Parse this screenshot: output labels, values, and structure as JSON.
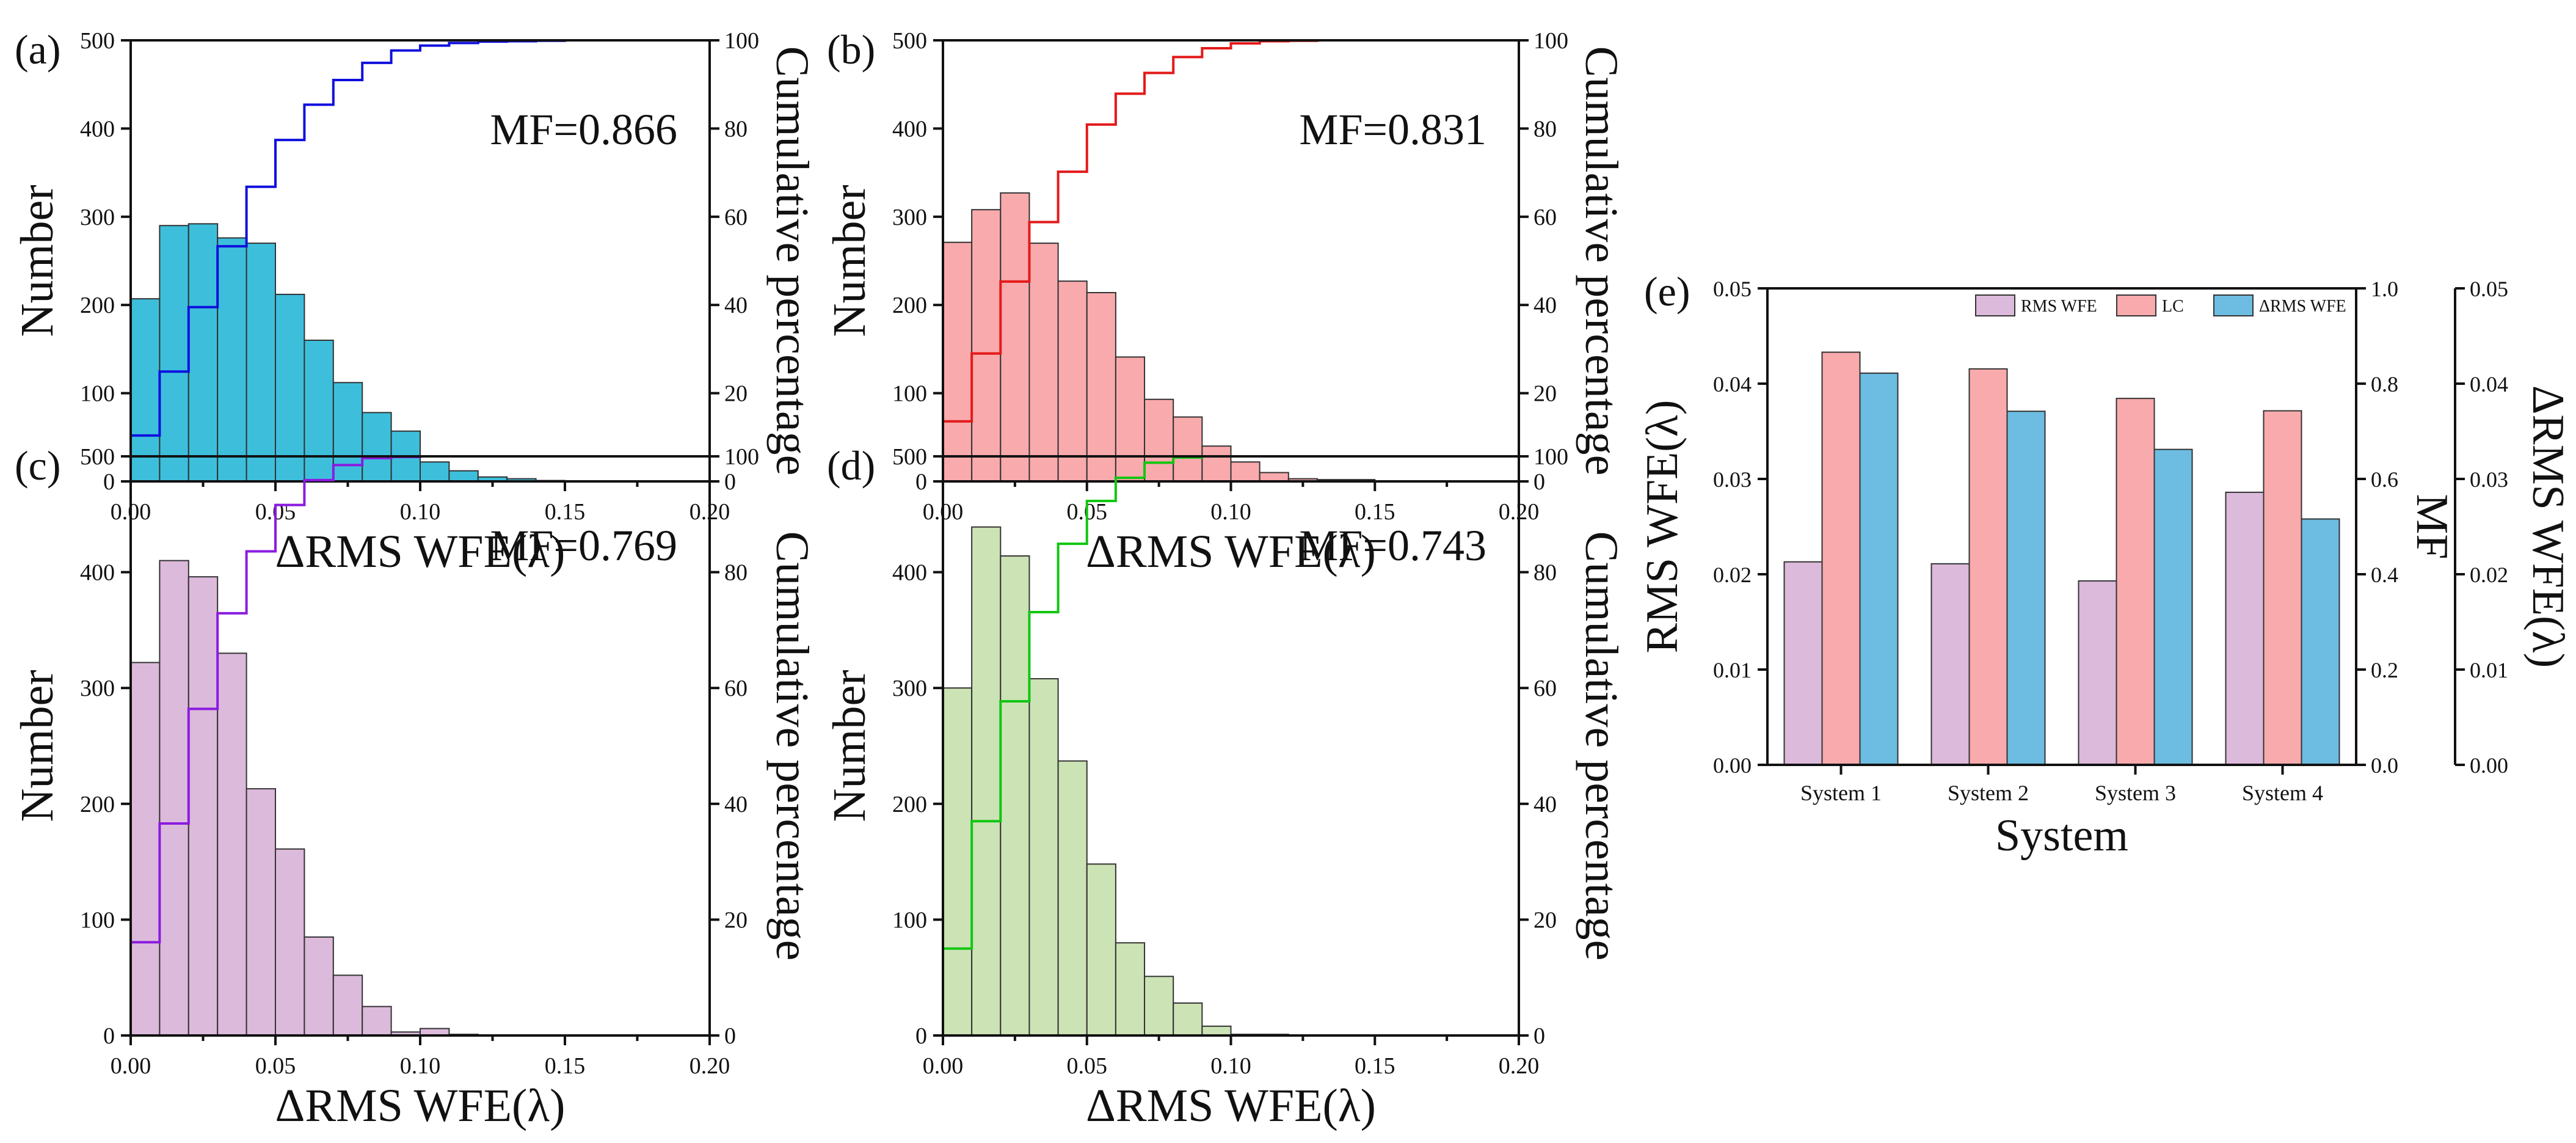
{
  "colors": {
    "a_bar": "#3dbfdc",
    "a_line": "#1010dd",
    "b_bar": "#f9aaad",
    "b_line": "#e31a1a",
    "c_bar": "#dcbadb",
    "c_line": "#8a1be0",
    "d_bar": "#cce3b5",
    "d_line": "#11c611",
    "e_rms": "#dcbadb",
    "e_lc": "#f9aaad",
    "e_drms": "#6cbde1"
  },
  "chart_data": [
    {
      "type": "bar",
      "panel": "(a)",
      "annotation": "MF=0.866",
      "xlabel": "ΔRMS WFE(λ)",
      "ylabel": "Number",
      "y2label": "Cumulative percentage",
      "xlim": [
        0,
        0.2
      ],
      "ylim": [
        0,
        500
      ],
      "y2lim": [
        0,
        100
      ],
      "xticks": [
        "0.00",
        "0.05",
        "0.10",
        "0.15",
        "0.20"
      ],
      "yticks": [
        "0",
        "100",
        "200",
        "300",
        "400",
        "500"
      ],
      "y2ticks": [
        "0",
        "20",
        "40",
        "60",
        "80",
        "100"
      ],
      "bin_width": 0.01,
      "values": [
        207,
        290,
        292,
        276,
        270,
        212,
        160,
        112,
        78,
        57,
        22,
        12,
        5,
        3,
        1,
        0,
        0,
        0,
        0,
        0
      ],
      "cumulative": [
        10.4,
        24.9,
        39.5,
        53.3,
        66.8,
        77.4,
        85.4,
        91.0,
        94.9,
        97.7,
        98.8,
        99.4,
        99.7,
        99.8,
        99.9,
        100,
        100,
        100,
        100,
        100
      ]
    },
    {
      "type": "bar",
      "panel": "(b)",
      "annotation": "MF=0.831",
      "xlabel": "ΔRMS WFE(λ)",
      "ylabel": "Number",
      "y2label": "Cumulative percentage",
      "xlim": [
        0,
        0.2
      ],
      "ylim": [
        0,
        500
      ],
      "y2lim": [
        0,
        100
      ],
      "xticks": [
        "0.00",
        "0.05",
        "0.10",
        "0.15",
        "0.20"
      ],
      "yticks": [
        "0",
        "100",
        "200",
        "300",
        "400",
        "500"
      ],
      "y2ticks": [
        "0",
        "20",
        "40",
        "60",
        "80",
        "100"
      ],
      "bin_width": 0.01,
      "values": [
        271,
        308,
        327,
        270,
        227,
        214,
        141,
        93,
        73,
        40,
        22,
        10,
        3,
        2,
        2,
        0,
        0,
        0,
        0,
        0
      ],
      "cumulative": [
        13.6,
        29.0,
        45.3,
        58.8,
        70.2,
        80.9,
        87.9,
        92.6,
        96.2,
        98.2,
        99.3,
        99.8,
        99.9,
        100,
        100,
        100,
        100,
        100,
        100,
        100
      ]
    },
    {
      "type": "bar",
      "panel": "(c)",
      "annotation": "MF=0.769",
      "xlabel": "ΔRMS WFE(λ)",
      "ylabel": "Number",
      "y2label": "Cumulative percentage",
      "xlim": [
        0,
        0.2
      ],
      "ylim": [
        0,
        500
      ],
      "y2lim": [
        0,
        100
      ],
      "xticks": [
        "0.00",
        "0.05",
        "0.10",
        "0.15",
        "0.20"
      ],
      "yticks": [
        "0",
        "100",
        "200",
        "300",
        "400",
        "500"
      ],
      "y2ticks": [
        "0",
        "20",
        "40",
        "60",
        "80",
        "100"
      ],
      "bin_width": 0.01,
      "values": [
        322,
        410,
        396,
        330,
        213,
        161,
        85,
        52,
        25,
        3,
        6,
        1,
        0,
        0,
        0,
        0,
        0,
        0,
        0,
        0
      ],
      "cumulative": [
        16.1,
        36.6,
        56.4,
        72.9,
        83.6,
        91.6,
        95.9,
        98.5,
        99.7,
        99.9,
        100,
        100,
        100,
        100,
        100,
        100,
        100,
        100,
        100,
        100
      ]
    },
    {
      "type": "bar",
      "panel": "(d)",
      "annotation": "MF=0.743",
      "xlabel": "ΔRMS WFE(λ)",
      "ylabel": "Number",
      "y2label": "Cumulative percentage",
      "xlim": [
        0,
        0.2
      ],
      "ylim": [
        0,
        500
      ],
      "y2lim": [
        0,
        100
      ],
      "xticks": [
        "0.00",
        "0.05",
        "0.10",
        "0.15",
        "0.20"
      ],
      "yticks": [
        "0",
        "100",
        "200",
        "300",
        "400",
        "500"
      ],
      "y2ticks": [
        "0",
        "20",
        "40",
        "60",
        "80",
        "100"
      ],
      "bin_width": 0.01,
      "values": [
        300,
        439,
        414,
        308,
        237,
        148,
        80,
        51,
        28,
        8,
        1,
        1,
        0,
        0,
        0,
        0,
        0,
        0,
        0,
        0
      ],
      "cumulative": [
        15.0,
        37.0,
        57.7,
        73.1,
        84.9,
        92.3,
        96.3,
        98.9,
        99.8,
        100,
        100,
        100,
        100,
        100,
        100,
        100,
        100,
        100,
        100,
        100
      ]
    },
    {
      "type": "bar",
      "panel": "(e)",
      "xlabel": "System",
      "ylabel": "RMS WFE(λ)",
      "y2label": "MF",
      "y3label": "ΔRMS WFE(λ)",
      "categories": [
        "System 1",
        "System 2",
        "System 3",
        "System 4"
      ],
      "ylim": [
        0,
        0.05
      ],
      "y2lim": [
        0,
        1.0
      ],
      "y3lim": [
        0,
        0.05
      ],
      "yticks": [
        "0.00",
        "0.01",
        "0.02",
        "0.03",
        "0.04",
        "0.05"
      ],
      "y2ticks": [
        "0.0",
        "0.2",
        "0.4",
        "0.6",
        "0.8",
        "1.0"
      ],
      "y3ticks": [
        "0.00",
        "0.01",
        "0.02",
        "0.03",
        "0.04",
        "0.05"
      ],
      "legend_position": "top-right",
      "series": [
        {
          "name": "RMS WFE",
          "axis": "left",
          "values": [
            0.0213,
            0.0211,
            0.0193,
            0.0286
          ]
        },
        {
          "name": "LC",
          "axis": "mf",
          "values": [
            0.866,
            0.831,
            0.769,
            0.743
          ]
        },
        {
          "name": "ΔRMS WFE",
          "axis": "right",
          "values": [
            0.0411,
            0.0371,
            0.0331,
            0.0258
          ]
        }
      ]
    }
  ]
}
